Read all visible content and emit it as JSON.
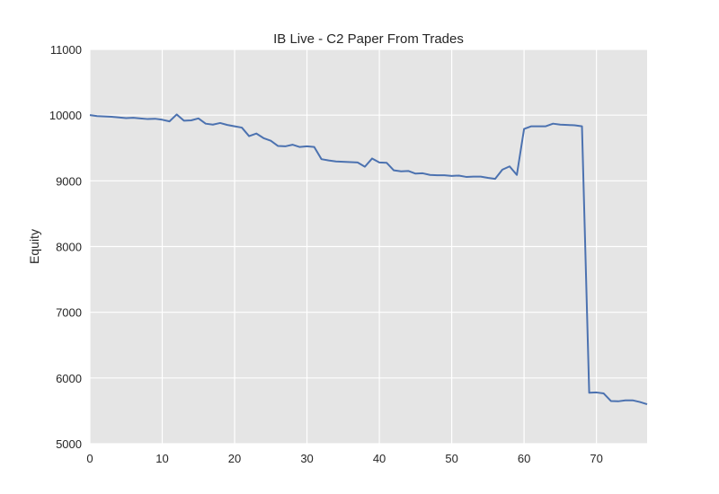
{
  "chart_data": {
    "type": "line",
    "title": "IB Live - C2 Paper From Trades",
    "xlabel": "",
    "ylabel": "Equity",
    "xlim": [
      0,
      77
    ],
    "ylim": [
      5000,
      11000
    ],
    "x_ticks": [
      0,
      10,
      20,
      30,
      40,
      50,
      60,
      70
    ],
    "y_ticks": [
      5000,
      6000,
      7000,
      8000,
      9000,
      10000,
      11000
    ],
    "grid": true,
    "colors": {
      "background": "#e5e5e5",
      "grid": "#ffffff",
      "line": "#4c72b0"
    },
    "series": [
      {
        "x": [
          0,
          1,
          2,
          3,
          4,
          5,
          6,
          7,
          8,
          9,
          10,
          11,
          12,
          13,
          14,
          15,
          16,
          17,
          18,
          19,
          20,
          21,
          22,
          23,
          24,
          25,
          26,
          27,
          28,
          29,
          30,
          31,
          32,
          33,
          34,
          35,
          36,
          37,
          38,
          39,
          40,
          41,
          42,
          43,
          44,
          45,
          46,
          47,
          48,
          49,
          50,
          51,
          52,
          53,
          54,
          55,
          56,
          57,
          58,
          59,
          60,
          61,
          62,
          63,
          64,
          65,
          66,
          67,
          68,
          69,
          70,
          71,
          72,
          73,
          74,
          75,
          76,
          77
        ],
        "values": [
          10000,
          9985,
          9980,
          9975,
          9965,
          9955,
          9960,
          9950,
          9940,
          9945,
          9930,
          9905,
          10010,
          9915,
          9920,
          9950,
          9870,
          9855,
          9880,
          9850,
          9830,
          9810,
          9680,
          9720,
          9650,
          9610,
          9530,
          9525,
          9550,
          9515,
          9525,
          9515,
          9330,
          9310,
          9295,
          9290,
          9285,
          9280,
          9215,
          9340,
          9280,
          9275,
          9160,
          9145,
          9150,
          9110,
          9115,
          9090,
          9085,
          9085,
          9075,
          9080,
          9060,
          9065,
          9065,
          9045,
          9030,
          9170,
          9220,
          9090,
          9790,
          9830,
          9830,
          9830,
          9870,
          9855,
          9850,
          9845,
          9830,
          5775,
          5780,
          5765,
          5650,
          5645,
          5660,
          5660,
          5635,
          5600
        ]
      }
    ]
  }
}
